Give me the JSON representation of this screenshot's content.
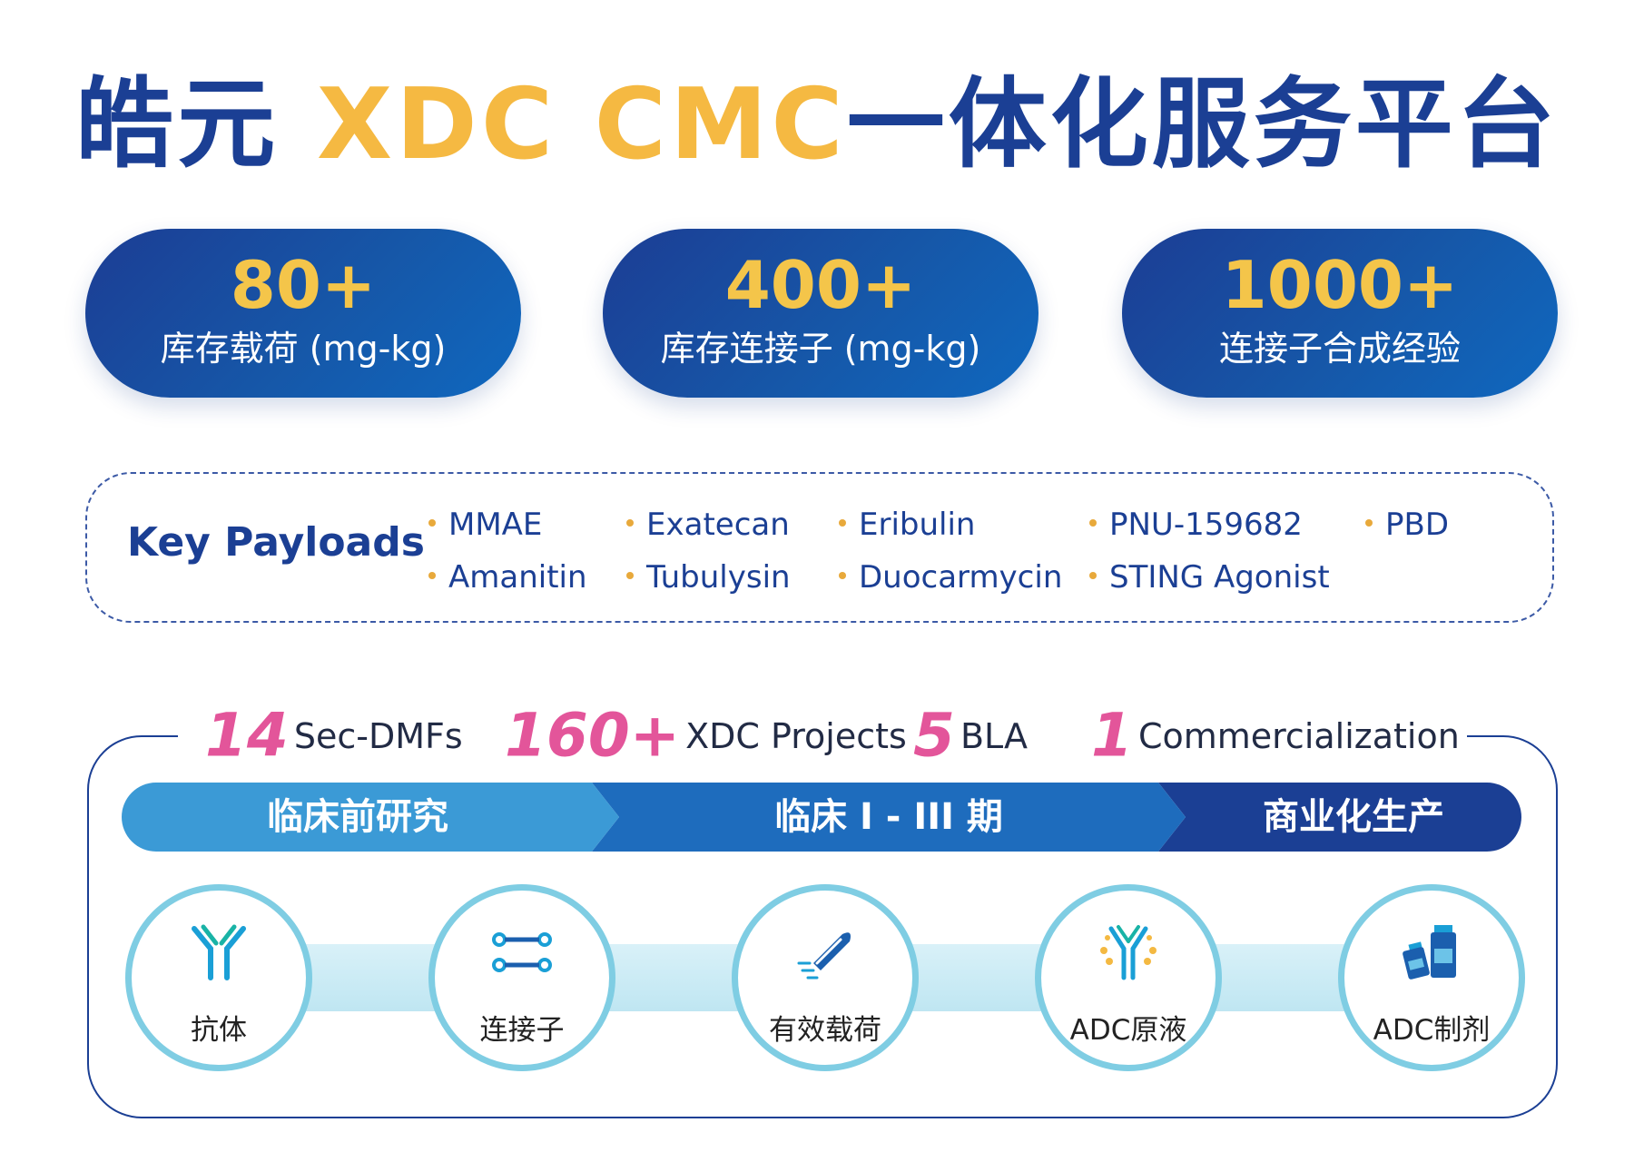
{
  "title": {
    "cn_prefix": "皓元",
    "en_middle": "XDC CMC",
    "cn_suffix": "一体化服务平台"
  },
  "stats": [
    {
      "value": "80+",
      "label": "库存载荷 (mg-kg)"
    },
    {
      "value": "400+",
      "label": "库存连接子 (mg-kg)"
    },
    {
      "value": "1000+",
      "label": "连接子合成经验"
    }
  ],
  "key_payloads": {
    "title": "Key Payloads",
    "items": [
      "MMAE",
      "Exatecan",
      "Eribulin",
      "PNU-159682",
      "PBD",
      "Amanitin",
      "Tubulysin",
      "Duocarmycin",
      "STING Agonist"
    ]
  },
  "counts": [
    {
      "number": "14",
      "text": "Sec-DMFs"
    },
    {
      "number": "160+",
      "text": "XDC Projects"
    },
    {
      "number": "5",
      "text": "BLA"
    },
    {
      "number": "1",
      "text": "Commercialization"
    }
  ],
  "phases": [
    "临床前研究",
    "临床 I - III 期",
    "商业化生产"
  ],
  "steps": [
    {
      "label": "抗体",
      "icon": "antibody-icon"
    },
    {
      "label": "连接子",
      "icon": "linker-icon"
    },
    {
      "label": "有效载荷",
      "icon": "payload-capsule-icon"
    },
    {
      "label": "ADC原液",
      "icon": "adc-conjugate-icon"
    },
    {
      "label": "ADC制剂",
      "icon": "vials-icon"
    }
  ],
  "colors": {
    "navy": "#1b3f94",
    "gold": "#f4c54a",
    "pink": "#e3559a",
    "phase_light": "#3b9ad6",
    "phase_mid": "#1e6cbd",
    "phase_dark": "#1b3f94",
    "circle_border": "#7fcde3"
  }
}
